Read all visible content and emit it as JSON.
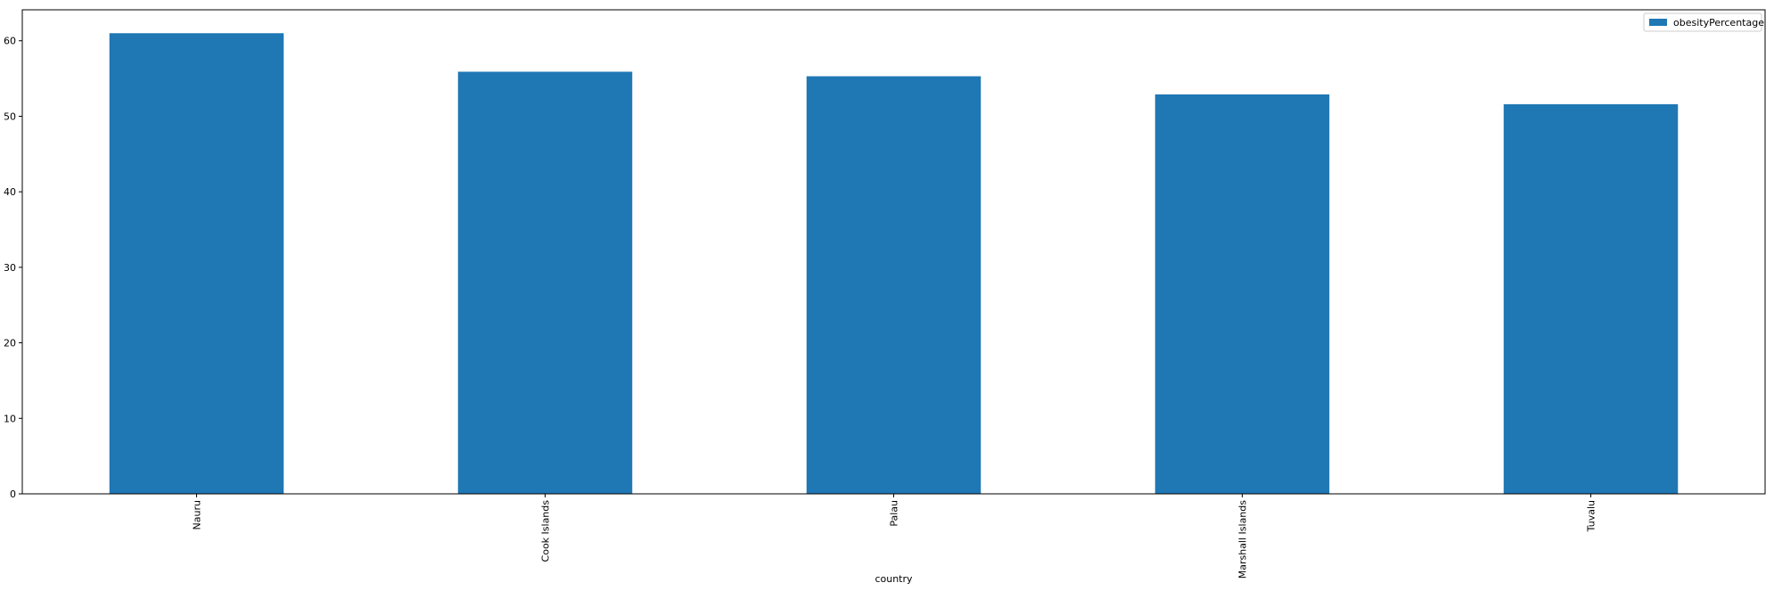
{
  "chart_data": {
    "type": "bar",
    "categories": [
      "Nauru",
      "Cook Islands",
      "Palau",
      "Marshall Islands",
      "Tuvalu"
    ],
    "series": [
      {
        "name": "obesityPercentage",
        "values": [
          61.0,
          55.9,
          55.3,
          52.9,
          51.6
        ]
      }
    ],
    "xlabel": "country",
    "ylabel": "",
    "ylim": [
      0,
      64.1
    ],
    "yticks": [
      0,
      10,
      20,
      30,
      40,
      50,
      60
    ],
    "legend_position": "top-right",
    "grid": false,
    "colors": {
      "bar": "#1f77b4",
      "axis": "#000000"
    }
  }
}
